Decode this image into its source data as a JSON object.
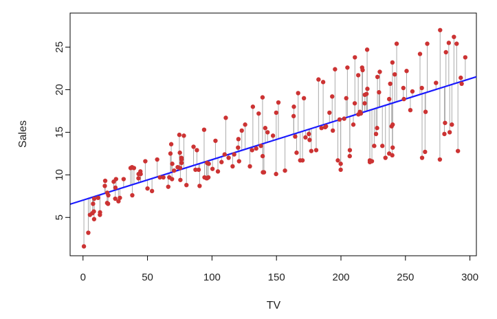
{
  "chart_data": {
    "type": "scatter",
    "xlabel": "TV",
    "ylabel": "Sales",
    "xlim": [
      -10,
      305
    ],
    "ylim": [
      0.5,
      29
    ],
    "x_ticks": [
      0,
      50,
      100,
      150,
      200,
      250,
      300
    ],
    "y_ticks": [
      5,
      10,
      15,
      20,
      25
    ],
    "grid": false,
    "point_color": "#cc3333",
    "residual_color": "#aaaaaa",
    "fit_line_color": "#1a1aff",
    "fit_line": {
      "intercept": 7.03,
      "slope": 0.0475
    },
    "points": [
      [
        0.7,
        1.6
      ],
      [
        4.1,
        3.2
      ],
      [
        5.4,
        5.3
      ],
      [
        7.3,
        5.5
      ],
      [
        7.8,
        6.6
      ],
      [
        8.4,
        5.7
      ],
      [
        8.6,
        4.8
      ],
      [
        8.7,
        7.2
      ],
      [
        11.7,
        7.3
      ],
      [
        13.1,
        5.3
      ],
      [
        13.2,
        5.6
      ],
      [
        16.9,
        8.7
      ],
      [
        17.2,
        9.3
      ],
      [
        18.7,
        6.7
      ],
      [
        18.8,
        7.9
      ],
      [
        19.4,
        6.6
      ],
      [
        19.6,
        7.6
      ],
      [
        23.8,
        9.2
      ],
      [
        25.0,
        7.2
      ],
      [
        25.1,
        8.5
      ],
      [
        25.6,
        9.5
      ],
      [
        27.5,
        6.9
      ],
      [
        28.6,
        7.3
      ],
      [
        31.5,
        9.5
      ],
      [
        36.9,
        10.8
      ],
      [
        38.0,
        10.9
      ],
      [
        38.2,
        7.6
      ],
      [
        39.5,
        10.8
      ],
      [
        43.0,
        9.6
      ],
      [
        43.1,
        10.1
      ],
      [
        44.5,
        10.4
      ],
      [
        44.7,
        10.1
      ],
      [
        48.3,
        11.6
      ],
      [
        50.0,
        8.4
      ],
      [
        53.5,
        8.1
      ],
      [
        57.5,
        11.8
      ],
      [
        59.6,
        9.7
      ],
      [
        62.3,
        9.7
      ],
      [
        66.1,
        8.6
      ],
      [
        66.9,
        9.7
      ],
      [
        67.8,
        12.5
      ],
      [
        68.4,
        13.6
      ],
      [
        69.0,
        9.5
      ],
      [
        69.2,
        11.3
      ],
      [
        70.6,
        10.5
      ],
      [
        73.4,
        10.9
      ],
      [
        74.7,
        14.7
      ],
      [
        75.1,
        12.6
      ],
      [
        75.3,
        10.8
      ],
      [
        75.5,
        9.4
      ],
      [
        76.3,
        12.0
      ],
      [
        76.4,
        11.4
      ],
      [
        76.4,
        11.8
      ],
      [
        78.2,
        14.6
      ],
      [
        80.2,
        8.8
      ],
      [
        85.7,
        13.3
      ],
      [
        87.2,
        10.6
      ],
      [
        88.3,
        12.9
      ],
      [
        89.7,
        10.6
      ],
      [
        90.4,
        8.7
      ],
      [
        93.9,
        15.3
      ],
      [
        94.2,
        9.7
      ],
      [
        95.7,
        9.6
      ],
      [
        96.2,
        11.4
      ],
      [
        96.2,
        9.6
      ],
      [
        97.2,
        9.7
      ],
      [
        97.5,
        11.3
      ],
      [
        100.4,
        10.7
      ],
      [
        102.7,
        14.0
      ],
      [
        104.6,
        10.4
      ],
      [
        107.4,
        11.5
      ],
      [
        109.8,
        12.4
      ],
      [
        110.7,
        16.7
      ],
      [
        112.9,
        12.0
      ],
      [
        116.0,
        11.0
      ],
      [
        117.2,
        12.4
      ],
      [
        120.2,
        13.2
      ],
      [
        120.5,
        14.2
      ],
      [
        121.0,
        11.6
      ],
      [
        123.1,
        15.2
      ],
      [
        125.7,
        15.9
      ],
      [
        129.4,
        11.0
      ],
      [
        131.1,
        12.9
      ],
      [
        131.7,
        18.0
      ],
      [
        134.3,
        13.1
      ],
      [
        136.2,
        17.2
      ],
      [
        137.9,
        13.4
      ],
      [
        139.2,
        19.1
      ],
      [
        139.3,
        12.2
      ],
      [
        139.5,
        10.3
      ],
      [
        140.3,
        10.3
      ],
      [
        141.3,
        15.5
      ],
      [
        143.1,
        15.0
      ],
      [
        147.3,
        14.6
      ],
      [
        149.7,
        10.1
      ],
      [
        149.8,
        17.3
      ],
      [
        151.5,
        18.5
      ],
      [
        156.6,
        10.5
      ],
      [
        163.3,
        16.9
      ],
      [
        163.5,
        18.0
      ],
      [
        164.5,
        14.5
      ],
      [
        165.6,
        12.6
      ],
      [
        166.8,
        19.6
      ],
      [
        168.4,
        11.7
      ],
      [
        170.2,
        11.7
      ],
      [
        171.3,
        19.0
      ],
      [
        172.5,
        14.4
      ],
      [
        175.1,
        14.8
      ],
      [
        175.7,
        14.1
      ],
      [
        177.0,
        12.8
      ],
      [
        180.8,
        12.9
      ],
      [
        182.6,
        21.2
      ],
      [
        184.9,
        15.5
      ],
      [
        186.2,
        20.9
      ],
      [
        187.8,
        15.6
      ],
      [
        188.4,
        15.7
      ],
      [
        191.1,
        17.3
      ],
      [
        193.2,
        19.2
      ],
      [
        193.7,
        15.2
      ],
      [
        195.4,
        22.4
      ],
      [
        197.6,
        11.7
      ],
      [
        198.9,
        16.5
      ],
      [
        199.8,
        11.3
      ],
      [
        199.8,
        10.6
      ],
      [
        202.5,
        16.6
      ],
      [
        204.1,
        19.0
      ],
      [
        205.0,
        22.6
      ],
      [
        206.8,
        12.2
      ],
      [
        206.9,
        12.9
      ],
      [
        209.6,
        15.9
      ],
      [
        210.7,
        18.4
      ],
      [
        210.8,
        23.8
      ],
      [
        213.4,
        21.7
      ],
      [
        213.5,
        17.1
      ],
      [
        214.7,
        17.4
      ],
      [
        215.4,
        17.2
      ],
      [
        216.4,
        22.6
      ],
      [
        216.8,
        22.3
      ],
      [
        218.4,
        18.4
      ],
      [
        218.5,
        19.4
      ],
      [
        219.8,
        19.5
      ],
      [
        220.3,
        24.7
      ],
      [
        220.5,
        20.1
      ],
      [
        222.4,
        11.7
      ],
      [
        222.4,
        11.5
      ],
      [
        224.0,
        11.6
      ],
      [
        225.8,
        13.4
      ],
      [
        227.2,
        14.8
      ],
      [
        228.0,
        15.5
      ],
      [
        228.3,
        21.5
      ],
      [
        229.5,
        19.7
      ],
      [
        230.1,
        22.1
      ],
      [
        232.1,
        13.4
      ],
      [
        234.5,
        12.0
      ],
      [
        237.4,
        12.5
      ],
      [
        237.4,
        18.9
      ],
      [
        238.2,
        20.7
      ],
      [
        239.3,
        15.7
      ],
      [
        239.8,
        12.3
      ],
      [
        239.9,
        23.2
      ],
      [
        240.1,
        15.9
      ],
      [
        240.1,
        13.2
      ],
      [
        241.7,
        21.8
      ],
      [
        243.2,
        25.4
      ],
      [
        248.4,
        20.2
      ],
      [
        248.8,
        18.9
      ],
      [
        250.9,
        22.2
      ],
      [
        253.8,
        17.6
      ],
      [
        255.4,
        19.8
      ],
      [
        261.3,
        24.2
      ],
      [
        262.7,
        20.2
      ],
      [
        262.9,
        12.0
      ],
      [
        265.2,
        12.7
      ],
      [
        265.6,
        17.4
      ],
      [
        266.9,
        25.4
      ],
      [
        273.7,
        20.8
      ],
      [
        276.7,
        11.8
      ],
      [
        276.9,
        27.0
      ],
      [
        280.2,
        14.8
      ],
      [
        280.7,
        16.1
      ],
      [
        281.4,
        24.4
      ],
      [
        283.6,
        25.5
      ],
      [
        284.3,
        15.0
      ],
      [
        286.0,
        15.9
      ],
      [
        287.6,
        26.2
      ],
      [
        289.7,
        25.4
      ],
      [
        290.7,
        12.8
      ],
      [
        292.9,
        21.4
      ],
      [
        293.6,
        20.7
      ],
      [
        296.4,
        23.8
      ]
    ]
  }
}
